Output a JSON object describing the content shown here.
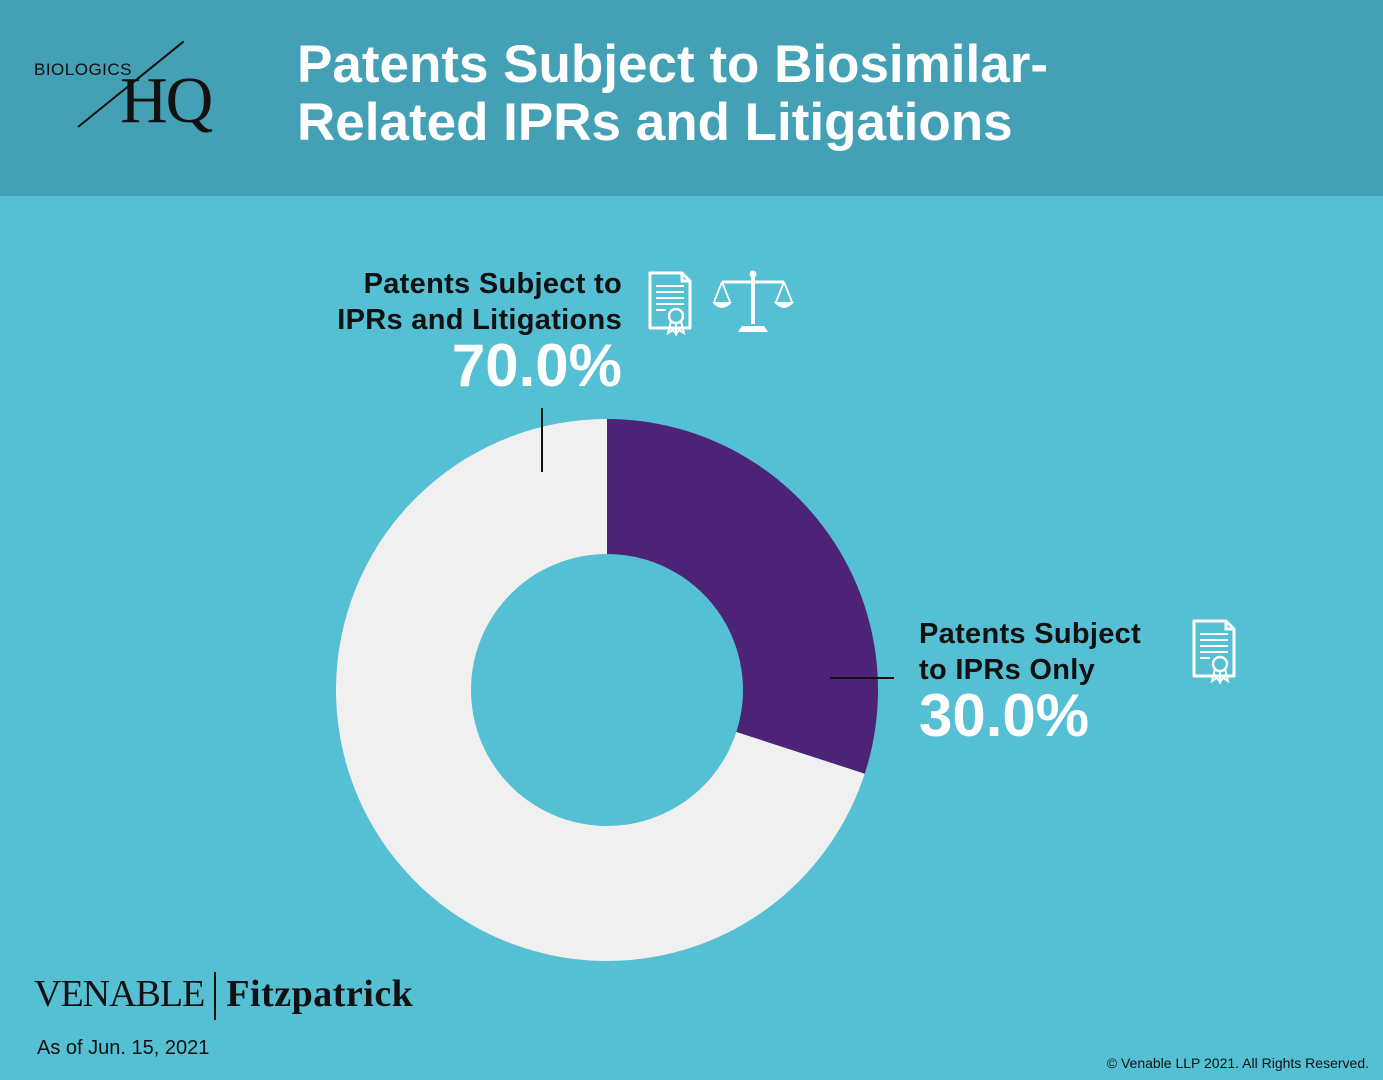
{
  "header": {
    "title_line1": "Patents Subject to Biosimilar-",
    "title_line2": "Related IPRs and Litigations",
    "background": "#43a0b5"
  },
  "logo": {
    "small_text": "BIOLOGICS",
    "big_text": "HQ"
  },
  "chart_data": {
    "type": "pie",
    "donut": true,
    "slices": [
      {
        "label_line1": "Patents Subject to",
        "label_line2": "IPRs and Litigations",
        "value": 70.0,
        "value_label": "70.0%",
        "color": "#f0f0f0",
        "icons": [
          "certificate-icon",
          "scales-of-justice-icon"
        ]
      },
      {
        "label_line1": "Patents Subject",
        "label_line2": "to IPRs Only",
        "value": 30.0,
        "value_label": "30.0%",
        "color": "#4d2378",
        "icons": [
          "certificate-icon"
        ]
      }
    ],
    "start_angle_deg": 0,
    "direction": "clockwise"
  },
  "colors": {
    "background": "#55bfd3",
    "text_light": "#ffffff",
    "text_dark": "#111111"
  },
  "footer": {
    "brand_left": "VENABLE",
    "brand_right": "Fitzpatrick",
    "as_of": "As of Jun. 15, 2021",
    "copyright": "© Venable LLP 2021. All Rights Reserved."
  }
}
